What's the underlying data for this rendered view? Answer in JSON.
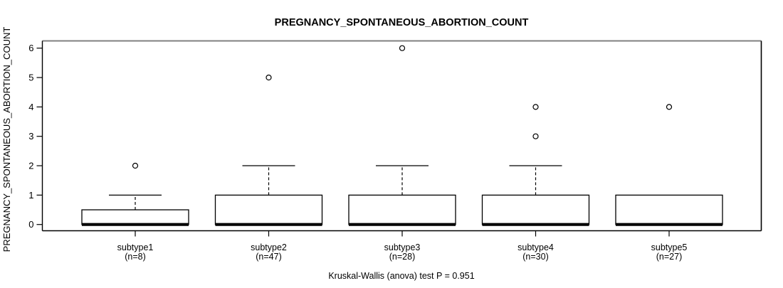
{
  "chart_data": {
    "type": "boxplot",
    "title": "PREGNANCY_SPONTANEOUS_ABORTION_COUNT",
    "xlabel": "",
    "ylabel": "PREGNANCY_SPONTANEOUS_ABORTION_COUNT",
    "caption": "Kruskal-Wallis (anova) test P = 0.951",
    "p_value": 0.951,
    "ylim": [
      0,
      6
    ],
    "yticks": [
      0,
      1,
      2,
      3,
      4,
      5,
      6
    ],
    "grid": false,
    "legend": false,
    "colors": {
      "box_fill": "#ffffff",
      "line": "#000000",
      "frame_top": "#808080"
    },
    "groups": [
      {
        "label": "subtype1",
        "sublabel": "(n=8)",
        "n": 8,
        "q1": 0,
        "median": 0,
        "q3": 0.5,
        "whisker_low": 0,
        "whisker_high": 1,
        "outliers": [
          2
        ]
      },
      {
        "label": "subtype2",
        "sublabel": "(n=47)",
        "n": 47,
        "q1": 0,
        "median": 0,
        "q3": 1,
        "whisker_low": 0,
        "whisker_high": 2,
        "outliers": [
          5
        ]
      },
      {
        "label": "subtype3",
        "sublabel": "(n=28)",
        "n": 28,
        "q1": 0,
        "median": 0,
        "q3": 1,
        "whisker_low": 0,
        "whisker_high": 2,
        "outliers": [
          6
        ]
      },
      {
        "label": "subtype4",
        "sublabel": "(n=30)",
        "n": 30,
        "q1": 0,
        "median": 0,
        "q3": 1,
        "whisker_low": 0,
        "whisker_high": 2,
        "outliers": [
          4,
          3
        ]
      },
      {
        "label": "subtype5",
        "sublabel": "(n=27)",
        "n": 27,
        "q1": 0,
        "median": 0,
        "q3": 1,
        "whisker_low": 0,
        "whisker_high": 1,
        "outliers": [
          4
        ]
      }
    ]
  }
}
